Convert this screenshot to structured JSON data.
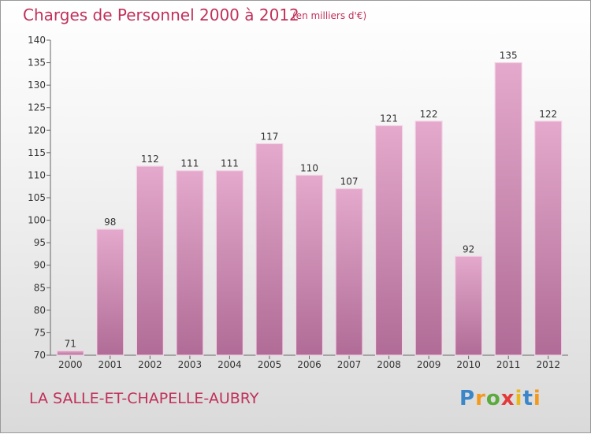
{
  "title": "Charges de Personnel 2000 à 2012",
  "subtitle": "(en milliers d'€)",
  "commune": "LA SALLE-ET-CHAPELLE-AUBRY",
  "logo": "Proxiti",
  "colors": {
    "title": "#c1305a",
    "bar_top": "#e4a9cc",
    "bar_bottom": "#b06c96",
    "bar_edge": "#f3d4e6"
  },
  "chart_data": {
    "type": "bar",
    "categories": [
      "2000",
      "2001",
      "2002",
      "2003",
      "2004",
      "2005",
      "2006",
      "2007",
      "2008",
      "2009",
      "2010",
      "2011",
      "2012"
    ],
    "values": [
      71,
      98,
      112,
      111,
      111,
      117,
      110,
      107,
      121,
      122,
      92,
      135,
      122
    ],
    "ylim": [
      70,
      140
    ],
    "yticks": [
      70,
      75,
      80,
      85,
      90,
      95,
      100,
      105,
      110,
      115,
      120,
      125,
      130,
      135,
      140
    ],
    "grid": false,
    "legend": "none"
  }
}
